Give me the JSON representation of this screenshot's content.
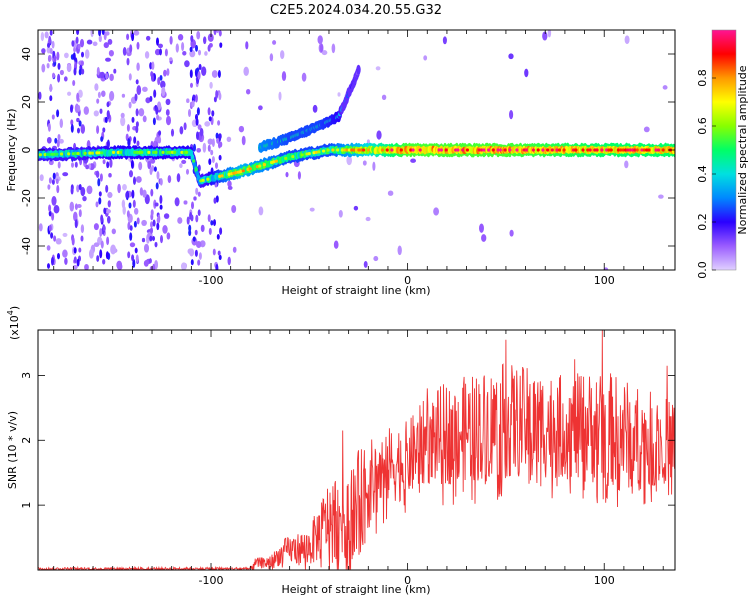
{
  "title": "C2E5.2024.034.20.55.G32",
  "colors": {
    "snr_line": "#ee3333",
    "frame": "#000000"
  },
  "chart_data": [
    {
      "type": "heatmap",
      "xlabel": "Height of straight line (km)",
      "ylabel": "Frequency (Hz)",
      "xlim": [
        -188,
        136
      ],
      "ylim": [
        -50,
        50
      ],
      "x_ticks": [
        -100,
        0,
        100
      ],
      "y_ticks": [
        -40,
        -20,
        0,
        20,
        40
      ],
      "colorbar": {
        "label": "Normalized spectral amplitude",
        "ticks": [
          0.0,
          0.2,
          0.4,
          0.6,
          0.8
        ],
        "range": [
          0,
          1
        ],
        "colormap": [
          "#e0d0ff",
          "#9a5cff",
          "#2a00ff",
          "#0088ff",
          "#00e0e0",
          "#00ff66",
          "#88ff00",
          "#ffff00",
          "#ff9900",
          "#ff0000",
          "#ff1493"
        ]
      },
      "signal_track": [
        {
          "x": -188,
          "y": -2,
          "amp": 0.5
        },
        {
          "x": -150,
          "y": -1,
          "amp": 0.55
        },
        {
          "x": -110,
          "y": -1,
          "amp": 0.55
        },
        {
          "x": -106,
          "y": -13,
          "amp": 0.5
        },
        {
          "x": -85,
          "y": -9,
          "amp": 0.7
        },
        {
          "x": -60,
          "y": -3,
          "amp": 0.6
        },
        {
          "x": -40,
          "y": 0,
          "amp": 0.6
        },
        {
          "x": -20,
          "y": 0,
          "amp": 0.75
        },
        {
          "x": 0,
          "y": 0,
          "amp": 0.9
        },
        {
          "x": 50,
          "y": 0,
          "amp": 0.9
        },
        {
          "x": 100,
          "y": 0,
          "amp": 0.85
        },
        {
          "x": 136,
          "y": 0,
          "amp": 0.85
        }
      ],
      "branch_track": [
        {
          "x": -75,
          "y": 1,
          "amp": 0.5
        },
        {
          "x": -60,
          "y": 5,
          "amp": 0.45
        },
        {
          "x": -45,
          "y": 10,
          "amp": 0.45
        },
        {
          "x": -35,
          "y": 14,
          "amp": 0.4
        },
        {
          "x": -25,
          "y": 33,
          "amp": 0.1
        }
      ]
    },
    {
      "type": "line",
      "xlabel": "Height of straight line (km)",
      "ylabel": "SNR (10 * v/v)",
      "y_multiplier": "(x10",
      "y_multiplier_exp": "4",
      "y_multiplier_close": ")",
      "xlim": [
        -188,
        136
      ],
      "ylim": [
        0,
        3.7
      ],
      "x_ticks": [
        -100,
        0,
        100
      ],
      "y_ticks": [
        1,
        2,
        3
      ],
      "envelope": [
        {
          "x": -188,
          "base": 0.02,
          "amp": 0.02
        },
        {
          "x": -80,
          "base": 0.02,
          "amp": 0.02
        },
        {
          "x": -78,
          "base": 0.1,
          "amp": 0.08
        },
        {
          "x": -70,
          "base": 0.12,
          "amp": 0.1
        },
        {
          "x": -62,
          "base": 0.3,
          "amp": 0.2
        },
        {
          "x": -50,
          "base": 0.35,
          "amp": 0.3
        },
        {
          "x": -40,
          "base": 0.8,
          "amp": 0.6
        },
        {
          "x": -30,
          "base": 0.9,
          "amp": 0.8
        },
        {
          "x": -20,
          "base": 1.3,
          "amp": 0.7
        },
        {
          "x": -10,
          "base": 1.6,
          "amp": 0.6
        },
        {
          "x": 0,
          "base": 1.7,
          "amp": 0.6
        },
        {
          "x": 10,
          "base": 2.0,
          "amp": 0.7
        },
        {
          "x": 20,
          "base": 2.1,
          "amp": 0.8
        },
        {
          "x": 50,
          "base": 2.3,
          "amp": 0.9
        },
        {
          "x": 80,
          "base": 2.2,
          "amp": 0.8
        },
        {
          "x": 100,
          "base": 2.2,
          "amp": 0.9
        },
        {
          "x": 120,
          "base": 2.0,
          "amp": 0.8
        },
        {
          "x": 136,
          "base": 2.0,
          "amp": 0.6
        }
      ],
      "peaks": [
        {
          "x": -33,
          "y": 2.15
        },
        {
          "x": 10,
          "y": 2.8
        },
        {
          "x": 50,
          "y": 3.55
        },
        {
          "x": 85,
          "y": 3.25
        },
        {
          "x": 99,
          "y": 3.7
        },
        {
          "x": 132,
          "y": 3.15
        }
      ]
    }
  ]
}
